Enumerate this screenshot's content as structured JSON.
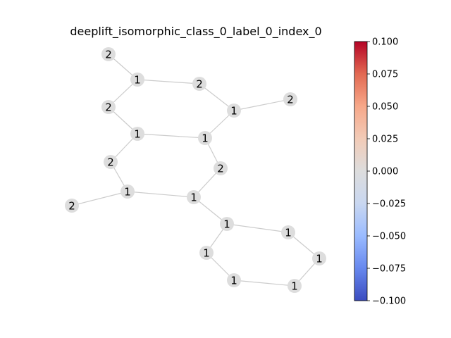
{
  "title": "deeplift_isomorphic_class_0_label_0_index_0",
  "graph": {
    "node_color": "#dddddd",
    "edge_color": "#cccccc",
    "nodes": [
      {
        "id": "n0",
        "label": "2"
      },
      {
        "id": "n1",
        "label": "1"
      },
      {
        "id": "n2",
        "label": "2"
      },
      {
        "id": "n3",
        "label": "2"
      },
      {
        "id": "n4",
        "label": "1"
      },
      {
        "id": "n5",
        "label": "2"
      },
      {
        "id": "n6",
        "label": "1"
      },
      {
        "id": "n7",
        "label": "1"
      },
      {
        "id": "n8",
        "label": "2"
      },
      {
        "id": "n9",
        "label": "2"
      },
      {
        "id": "n10",
        "label": "2"
      },
      {
        "id": "n11",
        "label": "1"
      },
      {
        "id": "n12",
        "label": "1"
      },
      {
        "id": "n13",
        "label": "1"
      },
      {
        "id": "n14",
        "label": "1"
      },
      {
        "id": "n15",
        "label": "1"
      },
      {
        "id": "n16",
        "label": "1"
      },
      {
        "id": "n17",
        "label": "1"
      },
      {
        "id": "n18",
        "label": "1"
      },
      {
        "id": "n19",
        "label": "1"
      }
    ],
    "edges": [
      [
        "n0",
        "n1"
      ],
      [
        "n1",
        "n2"
      ],
      [
        "n2",
        "n4"
      ],
      [
        "n4",
        "n5"
      ],
      [
        "n1",
        "n3"
      ],
      [
        "n3",
        "n6"
      ],
      [
        "n6",
        "n7"
      ],
      [
        "n7",
        "n4"
      ],
      [
        "n6",
        "n8"
      ],
      [
        "n8",
        "n11"
      ],
      [
        "n11",
        "n9"
      ],
      [
        "n7",
        "n10"
      ],
      [
        "n10",
        "n12"
      ],
      [
        "n11",
        "n12"
      ],
      [
        "n12",
        "n13"
      ],
      [
        "n13",
        "n14"
      ],
      [
        "n14",
        "n15"
      ],
      [
        "n15",
        "n16"
      ],
      [
        "n16",
        "n17"
      ],
      [
        "n17",
        "n18"
      ],
      [
        "n18",
        "n13"
      ]
    ]
  },
  "colorbar": {
    "colormap": "coolwarm",
    "min": -0.1,
    "max": 0.1,
    "colors": [
      "#3b4cc0",
      "#6788ee",
      "#9abbff",
      "#c9d7f0",
      "#dddddd",
      "#f2cbb7",
      "#f7a889",
      "#e26952",
      "#b40426"
    ],
    "ticks": [
      "−0.100",
      "−0.075",
      "−0.050",
      "−0.025",
      "0.000",
      "0.025",
      "0.050",
      "0.075",
      "0.100"
    ],
    "tick_values": [
      -0.1,
      -0.075,
      -0.05,
      -0.025,
      0,
      0.025,
      0.05,
      0.075,
      0.1
    ]
  }
}
